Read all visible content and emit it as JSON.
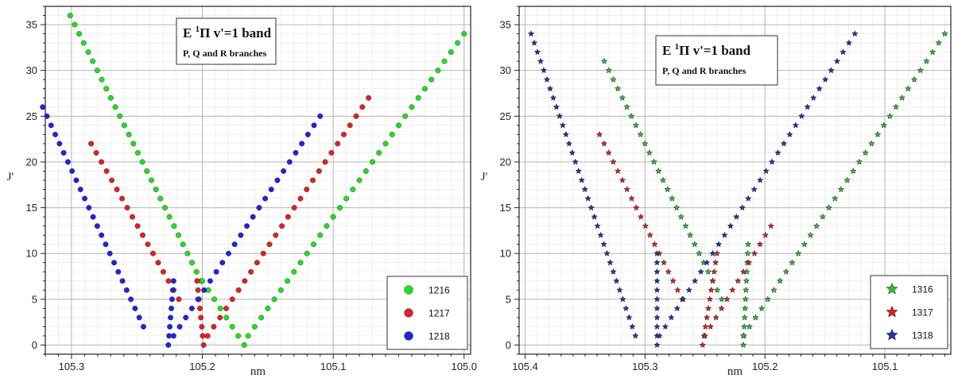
{
  "chart_data": [
    {
      "type": "scatter",
      "title": "E ¹Π v'=1 band",
      "title_main": "E",
      "title_sup": "1",
      "title_rest": "Π v'=1 band",
      "subtitle": "P, Q and R branches",
      "xlabel": "nm",
      "ylabel": "J'",
      "xlim": [
        105.32,
        104.995
      ],
      "ylim": [
        -1,
        37
      ],
      "x_reversed": true,
      "xticks": [
        105.3,
        105.2,
        105.1,
        105.0
      ],
      "xtick_labels": [
        "105.3",
        "105.2",
        "105.1",
        "105.0"
      ],
      "yticks": [
        0,
        5,
        10,
        15,
        20,
        25,
        30,
        35
      ],
      "ytick_labels": [
        "0",
        "5",
        "10",
        "15",
        "20",
        "25",
        "30",
        "35"
      ],
      "grid": true,
      "legend_position": "bottom-right",
      "marker": "circle",
      "series": [
        {
          "name": "1216",
          "color": "#22dd22",
          "branches": [
            {
              "J": [
                7,
                36
              ],
              "x": [
                105.201,
                105.301
              ]
            },
            {
              "J": [
                0,
                7
              ],
              "x": [
                105.168,
                105.2
              ]
            },
            {
              "J": [
                1,
                34
              ],
              "x": [
                105.165,
                105.0
              ]
            }
          ]
        },
        {
          "name": "1217",
          "color": "#dd2222",
          "branches": [
            {
              "J": [
                5,
                22
              ],
              "x": [
                105.218,
                105.285
              ]
            },
            {
              "J": [
                0,
                7
              ],
              "x": [
                105.199,
                105.204
              ]
            },
            {
              "J": [
                1,
                27
              ],
              "x": [
                105.196,
                105.073
              ]
            }
          ]
        },
        {
          "name": "1218",
          "color": "#2222dd",
          "branches": [
            {
              "J": [
                2,
                26
              ],
              "x": [
                105.245,
                105.322
              ]
            },
            {
              "J": [
                0,
                7
              ],
              "x": [
                105.226,
                105.222
              ]
            },
            {
              "J": [
                1,
                25
              ],
              "x": [
                105.222,
                105.11
              ]
            }
          ]
        }
      ]
    },
    {
      "type": "scatter",
      "title": "E ¹Π v'=1 band",
      "title_main": "E",
      "title_sup": "1",
      "title_rest": "Π v'=1 band",
      "subtitle": "P, Q and R branches",
      "xlabel": "nm",
      "ylabel": "J'",
      "xlim": [
        105.405,
        105.045
      ],
      "ylim": [
        -1,
        37
      ],
      "x_reversed": true,
      "xticks": [
        105.4,
        105.3,
        105.2,
        105.1
      ],
      "xtick_labels": [
        "105.4",
        "105.3",
        "105.2",
        "105.1"
      ],
      "yticks": [
        0,
        5,
        10,
        15,
        20,
        25,
        30,
        35
      ],
      "ytick_labels": [
        "0",
        "5",
        "10",
        "15",
        "20",
        "25",
        "30",
        "35"
      ],
      "grid": true,
      "legend_position": "bottom-right",
      "marker": "star",
      "series": [
        {
          "name": "1316",
          "color": "#33bb33",
          "branches": [
            {
              "J": [
                5,
                31
              ],
              "x": [
                105.236,
                105.334
              ]
            },
            {
              "J": [
                0,
                11
              ],
              "x": [
                105.218,
                105.214
              ]
            },
            {
              "J": [
                1,
                34
              ],
              "x": [
                105.218,
                105.05
              ]
            }
          ]
        },
        {
          "name": "1317",
          "color": "#dd2222",
          "branches": [
            {
              "J": [
                5,
                23
              ],
              "x": [
                105.269,
                105.338
              ]
            },
            {
              "J": [
                0,
                10
              ],
              "x": [
                105.252,
                105.24
              ]
            },
            {
              "J": [
                1,
                13
              ],
              "x": [
                105.25,
                105.195
              ]
            }
          ]
        },
        {
          "name": "1318",
          "color": "#2233aa",
          "branches": [
            {
              "J": [
                1,
                34
              ],
              "x": [
                105.308,
                105.395
              ]
            },
            {
              "J": [
                0,
                10
              ],
              "x": [
                105.29,
                105.29
              ]
            },
            {
              "J": [
                1,
                34
              ],
              "x": [
                105.288,
                105.125
              ]
            }
          ]
        }
      ]
    }
  ]
}
